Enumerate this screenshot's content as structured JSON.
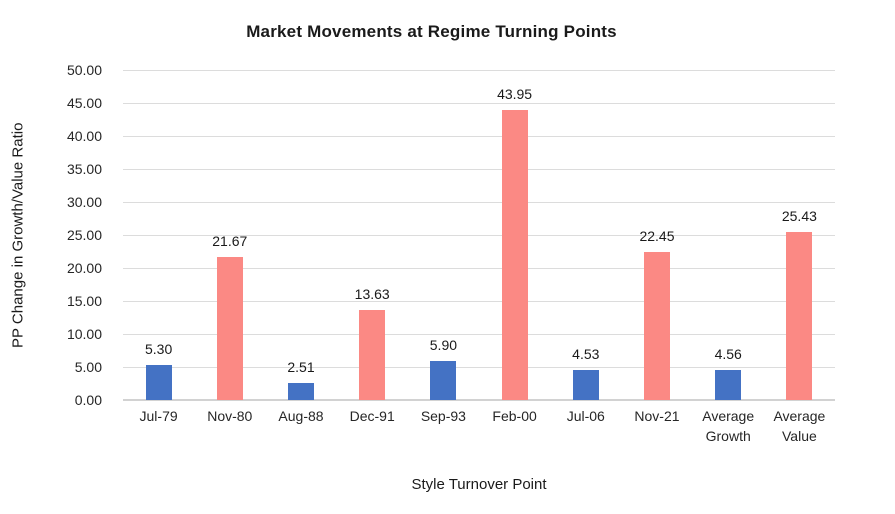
{
  "chart_data": {
    "type": "bar",
    "title": "Market Movements at Regime Turning Points",
    "xlabel": "Style Turnover Point",
    "ylabel": "PP Change in Growth/Value Ratio",
    "categories": [
      "Jul-79",
      "Nov-80",
      "Aug-88",
      "Dec-91",
      "Sep-93",
      "Feb-00",
      "Jul-06",
      "Nov-21",
      "Average Growth",
      "Average Value"
    ],
    "values": [
      5.3,
      21.67,
      2.51,
      13.63,
      5.9,
      43.95,
      4.53,
      22.45,
      4.56,
      25.43
    ],
    "value_labels": [
      "5.30",
      "21.67",
      "2.51",
      "13.63",
      "5.90",
      "43.95",
      "4.53",
      "22.45",
      "4.56",
      "25.43"
    ],
    "color_key": [
      "growth",
      "value",
      "growth",
      "value",
      "growth",
      "value",
      "growth",
      "value",
      "growth",
      "value"
    ],
    "colors": {
      "growth": "#4472C4",
      "value": "#FB8984"
    },
    "ylim": [
      0,
      50
    ],
    "ytick_step": 5,
    "ytick_labels": [
      "0.00",
      "5.00",
      "10.00",
      "15.00",
      "20.00",
      "25.00",
      "30.00",
      "35.00",
      "40.00",
      "45.00",
      "50.00"
    ],
    "grid": true,
    "gridline_color": "#DCDCDC",
    "axis_line_color": "#D2D2D2",
    "legend": "none"
  }
}
